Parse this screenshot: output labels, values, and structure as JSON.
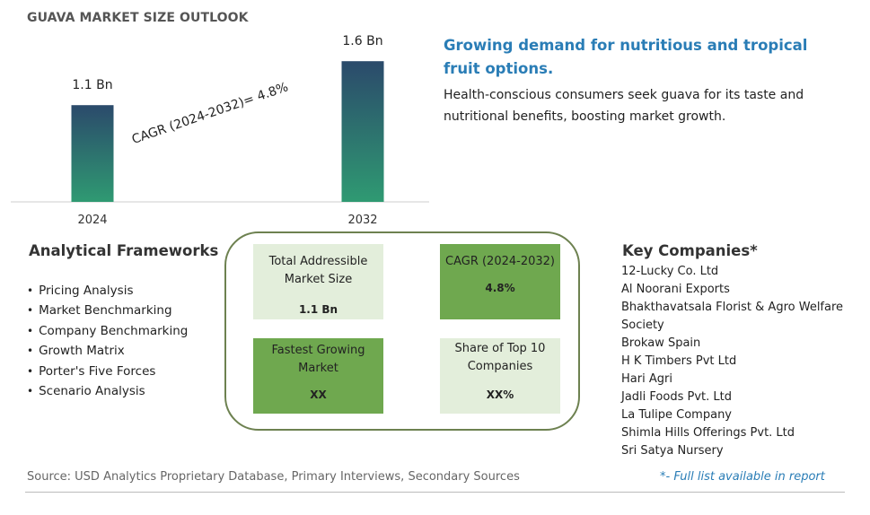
{
  "header": {
    "title": "GUAVA MARKET SIZE OUTLOOK"
  },
  "chart_data": {
    "type": "bar",
    "categories": [
      "2024",
      "2032"
    ],
    "values": [
      1.1,
      1.6
    ],
    "data_labels": [
      "1.1 Bn",
      "1.6 Bn"
    ],
    "unit": "Bn",
    "annotation": "CAGR (2024-2032)=  4.8%",
    "gradient_colors": {
      "top": "#2b4a6b",
      "bottom": "#2f9a72"
    }
  },
  "headline": {
    "title": "Growing demand for nutritious and tropical fruit options.",
    "body": "Health-conscious consumers seek guava for its taste and nutritional benefits, boosting market growth."
  },
  "frameworks": {
    "title": "Analytical Frameworks",
    "items": [
      "Pricing Analysis",
      "Market Benchmarking",
      "Company Benchmarking",
      "Growth Matrix",
      "Porter's Five Forces",
      "Scenario Analysis"
    ]
  },
  "summary": {
    "tiles": [
      {
        "label": "Total Addressible Market Size",
        "value": "1.1 Bn"
      },
      {
        "label": "CAGR (2024-2032)",
        "value": "4.8%"
      },
      {
        "label": "Fastest Growing Market",
        "value": "XX"
      },
      {
        "label": "Share of Top 10 Companies",
        "value": "XX%"
      }
    ]
  },
  "companies": {
    "title": "Key Companies*",
    "items": [
      "12-Lucky Co. Ltd",
      "Al Noorani Exports",
      "Bhakthavatsala Florist & Agro Welfare Society",
      "Brokaw Spain",
      "H K Timbers Pvt Ltd",
      "Hari Agri",
      "Jadli Foods Pvt. Ltd",
      "La Tulipe Company",
      "Shimla Hills Offerings Pvt. Ltd",
      "Sri Satya Nursery"
    ]
  },
  "footer": {
    "source": "Source: USD Analytics Proprietary Database, Primary Interviews, Secondary Sources",
    "note": "*- Full list available in report"
  },
  "colors": {
    "accent_blue": "#2a7db6",
    "tile_light": "#e3eedb",
    "tile_dark": "#6fa84f",
    "frame_border": "#6d8150"
  }
}
